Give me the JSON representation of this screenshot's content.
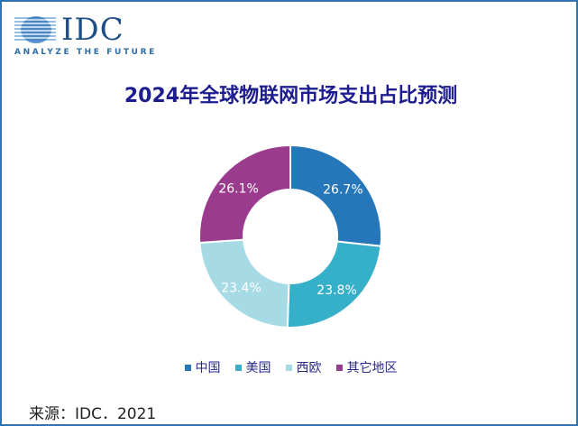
{
  "logo": {
    "name": "IDC",
    "tagline": "ANALYZE THE FUTURE"
  },
  "title": "2024年全球物联网市场支出占比预测",
  "source": "来源：IDC．2021",
  "chart_data": {
    "type": "pie",
    "variant": "donut",
    "title": "2024年全球物联网市场支出占比预测",
    "categories": [
      "中国",
      "美国",
      "西欧",
      "其它地区"
    ],
    "values": [
      26.7,
      23.8,
      23.4,
      26.1
    ],
    "labels": [
      "26.7%",
      "23.8%",
      "23.4%",
      "26.1%"
    ],
    "colors": [
      "#2577ba",
      "#36afc8",
      "#a6dbe6",
      "#9b3b8e"
    ],
    "label_colors": [
      "#ffffff",
      "#ffffff",
      "#2a5a8a",
      "#ffffff"
    ],
    "legend_position": "bottom",
    "start_angle": "12 o'clock, clockwise"
  },
  "legend": [
    {
      "label": "中国",
      "color": "#2577ba"
    },
    {
      "label": "美国",
      "color": "#36afc8"
    },
    {
      "label": "西欧",
      "color": "#a6dbe6"
    },
    {
      "label": "其它地区",
      "color": "#9b3b8e"
    }
  ]
}
